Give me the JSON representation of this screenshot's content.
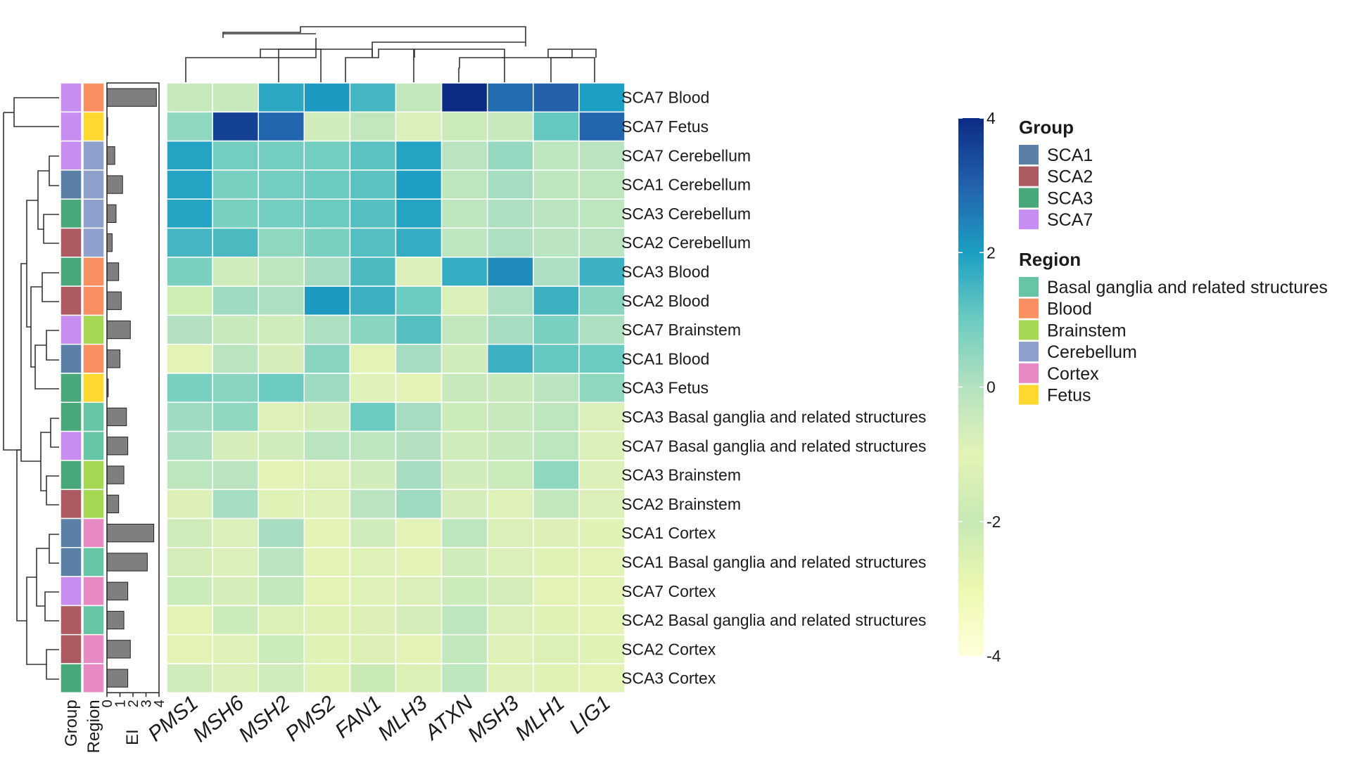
{
  "chart_data": {
    "type": "heatmap",
    "columns": [
      "PMS1",
      "MSH6",
      "MSH2",
      "PMS2",
      "FAN1",
      "MLH3",
      "ATXN",
      "MSH3",
      "MLH1",
      "LIG1"
    ],
    "rows": [
      {
        "label": "SCA7 Blood",
        "group": "SCA7",
        "region": "Blood",
        "ei": 3.8,
        "values": [
          -0.4,
          -0.4,
          1.8,
          2.1,
          1.5,
          -0.3,
          4.0,
          2.8,
          3.0,
          2.0
        ]
      },
      {
        "label": "SCA7 Fetus",
        "group": "SCA7",
        "region": "Fetus",
        "ei": 0.05,
        "values": [
          0.5,
          3.6,
          2.9,
          -0.6,
          -0.3,
          -0.8,
          -0.5,
          -0.4,
          1.1,
          2.9
        ]
      },
      {
        "label": "SCA7 Cerebellum",
        "group": "SCA7",
        "region": "Cerebellum",
        "ei": 0.6,
        "values": [
          1.9,
          0.9,
          0.9,
          0.9,
          1.2,
          1.9,
          -0.1,
          0.4,
          -0.2,
          -0.1
        ]
      },
      {
        "label": "SCA1 Cerebellum",
        "group": "SCA1",
        "region": "Cerebellum",
        "ei": 1.2,
        "values": [
          1.9,
          0.8,
          0.9,
          1.0,
          1.2,
          2.0,
          -0.2,
          0.2,
          -0.2,
          -0.2
        ]
      },
      {
        "label": "SCA3 Cerebellum",
        "group": "SCA3",
        "region": "Cerebellum",
        "ei": 0.7,
        "values": [
          1.9,
          0.8,
          0.9,
          1.0,
          1.3,
          1.9,
          -0.2,
          0.1,
          -0.1,
          -0.2
        ]
      },
      {
        "label": "SCA2 Cerebellum",
        "group": "SCA2",
        "region": "Cerebellum",
        "ei": 0.4,
        "values": [
          1.5,
          1.4,
          0.5,
          0.8,
          1.3,
          1.7,
          -0.2,
          0.1,
          -0.1,
          -0.1
        ]
      },
      {
        "label": "SCA3 Blood",
        "group": "SCA3",
        "region": "Blood",
        "ei": 0.9,
        "values": [
          0.8,
          -0.6,
          -0.2,
          0.2,
          1.4,
          -0.8,
          1.7,
          2.3,
          0.1,
          1.6
        ]
      },
      {
        "label": "SCA2 Blood",
        "group": "SCA2",
        "region": "Blood",
        "ei": 1.1,
        "values": [
          -2.2,
          0.3,
          0.1,
          2.1,
          1.6,
          1.0,
          -0.8,
          0.1,
          1.6,
          0.6
        ]
      },
      {
        "label": "SCA7 Brainstem",
        "group": "SCA7",
        "region": "Brainstem",
        "ei": 1.8,
        "values": [
          0.0,
          -0.4,
          -0.6,
          0.1,
          0.6,
          1.3,
          -0.3,
          0.2,
          0.8,
          0.1
        ]
      },
      {
        "label": "SCA1 Blood",
        "group": "SCA1",
        "region": "Blood",
        "ei": 1.0,
        "values": [
          -1.0,
          -0.1,
          -0.7,
          0.6,
          -1.0,
          0.2,
          -0.6,
          1.6,
          1.1,
          1.0
        ]
      },
      {
        "label": "SCA3 Fetus",
        "group": "SCA3",
        "region": "Fetus",
        "ei": 0.1,
        "values": [
          0.8,
          0.6,
          1.0,
          0.3,
          -0.9,
          -1.0,
          -0.4,
          -0.4,
          -0.1,
          0.5
        ]
      },
      {
        "label": "SCA3 Basal ganglia and related structures",
        "group": "SCA3",
        "region": "Basal ganglia and related structures",
        "ei": 1.5,
        "values": [
          0.3,
          0.5,
          -0.9,
          -0.7,
          1.0,
          0.2,
          -0.5,
          -0.4,
          -0.2,
          -0.8
        ]
      },
      {
        "label": "SCA7 Basal ganglia and related structures",
        "group": "SCA7",
        "region": "Basal ganglia and related structures",
        "ei": 1.6,
        "values": [
          0.1,
          -0.7,
          -0.6,
          -0.1,
          -0.2,
          0.0,
          -0.6,
          -0.4,
          -0.2,
          -0.8
        ]
      },
      {
        "label": "SCA3 Brainstem",
        "group": "SCA3",
        "region": "Brainstem",
        "ei": 1.3,
        "values": [
          -0.2,
          -0.1,
          -1.0,
          -0.9,
          -0.6,
          0.2,
          -0.6,
          -0.5,
          0.5,
          -0.8
        ]
      },
      {
        "label": "SCA2 Brainstem",
        "group": "SCA2",
        "region": "Brainstem",
        "ei": 0.9,
        "values": [
          -1.2,
          0.2,
          -1.1,
          -0.9,
          -0.1,
          0.3,
          -0.7,
          -0.9,
          -0.3,
          -0.8
        ]
      },
      {
        "label": "SCA1 Cortex",
        "group": "SCA1",
        "region": "Cortex",
        "ei": 3.6,
        "values": [
          -0.6,
          -0.8,
          0.2,
          -1.0,
          -0.6,
          -1.0,
          -0.2,
          -0.8,
          -1.2,
          -1.1
        ]
      },
      {
        "label": "SCA1 Basal ganglia and related structures",
        "group": "SCA1",
        "region": "Basal ganglia and related structures",
        "ei": 3.1,
        "values": [
          -0.7,
          -0.8,
          -0.1,
          -1.0,
          -0.9,
          -1.0,
          -0.6,
          -0.8,
          -1.1,
          -1.0
        ]
      },
      {
        "label": "SCA7 Cortex",
        "group": "SCA7",
        "region": "Cortex",
        "ei": 1.6,
        "values": [
          -0.5,
          -0.7,
          -0.3,
          -1.0,
          -0.9,
          -0.8,
          -0.5,
          -0.7,
          -1.0,
          -1.0
        ]
      },
      {
        "label": "SCA2 Basal ganglia and related structures",
        "group": "SCA2",
        "region": "Basal ganglia and related structures",
        "ei": 1.3,
        "values": [
          -1.0,
          -0.5,
          -1.3,
          -1.1,
          -1.2,
          -0.7,
          -0.2,
          -0.8,
          -1.1,
          -1.0
        ]
      },
      {
        "label": "SCA2 Cortex",
        "group": "SCA2",
        "region": "Cortex",
        "ei": 1.8,
        "values": [
          -1.0,
          -0.9,
          -0.5,
          -1.1,
          -1.2,
          -1.0,
          -0.3,
          -0.9,
          -1.3,
          -1.1
        ]
      },
      {
        "label": "SCA3 Cortex",
        "group": "SCA3",
        "region": "Cortex",
        "ei": 1.6,
        "values": [
          -0.6,
          -0.8,
          -0.6,
          -1.1,
          -1.9,
          -1.3,
          -0.2,
          -0.9,
          -1.1,
          -1.0
        ]
      }
    ],
    "annotation_columns": [
      "Group",
      "Region"
    ],
    "ei_label": "EI",
    "ei_ticks": [
      0,
      1,
      2,
      3,
      4
    ],
    "ei_range": [
      0,
      4
    ],
    "color_scale": {
      "range": [
        -4,
        4
      ],
      "ticks": [
        4,
        2,
        0,
        -2,
        -4
      ],
      "stops": [
        {
          "value": -4,
          "color": "#ffffd9"
        },
        {
          "value": -3,
          "color": "#edf8b1"
        },
        {
          "value": -2,
          "color": "#c7e9b4"
        },
        {
          "value": -1,
          "color": "#e3f3b6"
        },
        {
          "value": 0,
          "color": "#b4e2c0"
        },
        {
          "value": 1,
          "color": "#6ccbc0"
        },
        {
          "value": 2,
          "color": "#1d9fc3"
        },
        {
          "value": 3,
          "color": "#2361ab"
        },
        {
          "value": 4,
          "color": "#0c2c84"
        }
      ]
    },
    "group_legend": {
      "title": "Group",
      "items": [
        {
          "label": "SCA1",
          "color": "#5a80a8"
        },
        {
          "label": "SCA2",
          "color": "#ad5a62"
        },
        {
          "label": "SCA3",
          "color": "#49a87a"
        },
        {
          "label": "SCA7",
          "color": "#c88df0"
        }
      ]
    },
    "region_legend": {
      "title": "Region",
      "items": [
        {
          "label": "Basal ganglia and related structures",
          "color": "#66c5a5"
        },
        {
          "label": "Blood",
          "color": "#fa8f61"
        },
        {
          "label": "Brainstem",
          "color": "#a6d854"
        },
        {
          "label": "Cerebellum",
          "color": "#8fa0cc"
        },
        {
          "label": "Cortex",
          "color": "#e78ac3"
        },
        {
          "label": "Fetus",
          "color": "#ffd92f"
        }
      ]
    }
  }
}
